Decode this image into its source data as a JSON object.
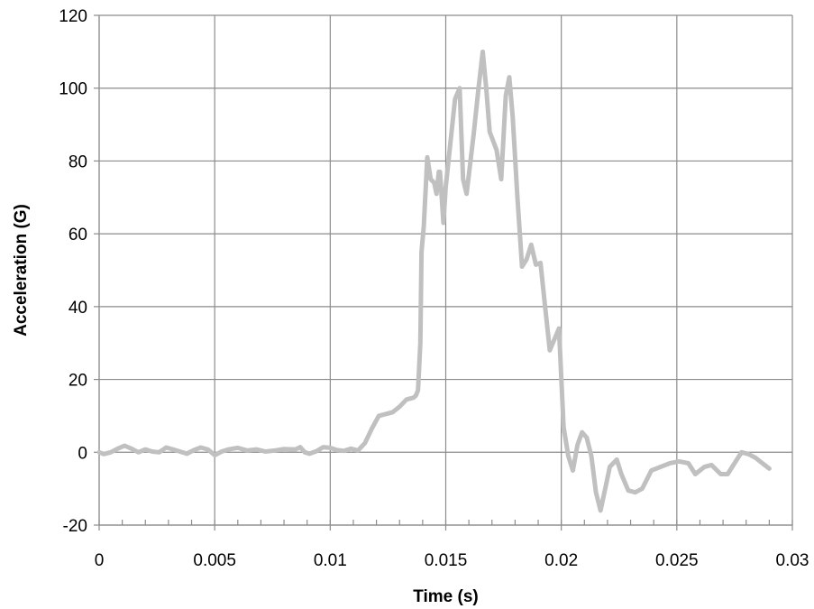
{
  "chart_data": {
    "type": "line",
    "title": "",
    "xlabel": "Time (s)",
    "ylabel": "Acceleration (G)",
    "xlim": [
      0,
      0.03
    ],
    "ylim": [
      -20,
      120
    ],
    "x_ticks": [
      0,
      0.005,
      0.01,
      0.015,
      0.02,
      0.025,
      0.03
    ],
    "x_tick_labels": [
      "0",
      "0.005",
      "0.01",
      "0.015",
      "0.02",
      "0.025",
      "0.03"
    ],
    "y_ticks": [
      -20,
      0,
      20,
      40,
      60,
      80,
      100,
      120
    ],
    "y_tick_labels": [
      "-20",
      "0",
      "20",
      "40",
      "60",
      "80",
      "100",
      "120"
    ],
    "x_minor_step": 0.001,
    "grid": true,
    "legend": "none",
    "series": [
      {
        "color": "#c0c0c0",
        "points": [
          [
            0.0,
            0
          ],
          [
            0.0002,
            -0.5
          ],
          [
            0.0005,
            0
          ],
          [
            0.0008,
            1
          ],
          [
            0.0011,
            1.8
          ],
          [
            0.0014,
            1
          ],
          [
            0.0017,
            0
          ],
          [
            0.002,
            0.8
          ],
          [
            0.0023,
            0.2
          ],
          [
            0.0026,
            0
          ],
          [
            0.0029,
            1.3
          ],
          [
            0.0032,
            0.8
          ],
          [
            0.0035,
            0.2
          ],
          [
            0.0038,
            -0.4
          ],
          [
            0.0041,
            0.6
          ],
          [
            0.0044,
            1.3
          ],
          [
            0.0047,
            0.8
          ],
          [
            0.005,
            -0.8
          ],
          [
            0.0053,
            0.2
          ],
          [
            0.0056,
            0.8
          ],
          [
            0.006,
            1.2
          ],
          [
            0.0064,
            0.5
          ],
          [
            0.0068,
            0.8
          ],
          [
            0.0072,
            0.2
          ],
          [
            0.0076,
            0.5
          ],
          [
            0.008,
            0.9
          ],
          [
            0.0085,
            0.8
          ],
          [
            0.0087,
            1.4
          ],
          [
            0.0089,
            0.0
          ],
          [
            0.0091,
            -0.4
          ],
          [
            0.0094,
            0.3
          ],
          [
            0.0097,
            1.4
          ],
          [
            0.01,
            1.2
          ],
          [
            0.0103,
            0.6
          ],
          [
            0.0106,
            0.4
          ],
          [
            0.0109,
            1.0
          ],
          [
            0.0112,
            0.5
          ],
          [
            0.0115,
            2.5
          ],
          [
            0.0118,
            6.5
          ],
          [
            0.0121,
            10
          ],
          [
            0.0124,
            10.5
          ],
          [
            0.0127,
            11
          ],
          [
            0.013,
            12.5
          ],
          [
            0.0133,
            14.5
          ],
          [
            0.0136,
            15
          ],
          [
            0.0137,
            15.5
          ],
          [
            0.0138,
            17
          ],
          [
            0.0139,
            30
          ],
          [
            0.01395,
            55
          ],
          [
            0.01405,
            62
          ],
          [
            0.0142,
            81
          ],
          [
            0.01435,
            75
          ],
          [
            0.0145,
            74
          ],
          [
            0.0146,
            71
          ],
          [
            0.0147,
            77
          ],
          [
            0.01475,
            77
          ],
          [
            0.0149,
            63
          ],
          [
            0.015,
            73
          ],
          [
            0.0154,
            97
          ],
          [
            0.0156,
            100
          ],
          [
            0.01575,
            75
          ],
          [
            0.0159,
            71
          ],
          [
            0.0162,
            87
          ],
          [
            0.0164,
            99
          ],
          [
            0.0166,
            110
          ],
          [
            0.01675,
            100
          ],
          [
            0.0169,
            88
          ],
          [
            0.0172,
            83
          ],
          [
            0.0174,
            75
          ],
          [
            0.0176,
            98
          ],
          [
            0.01775,
            103
          ],
          [
            0.0179,
            92
          ],
          [
            0.0181,
            70
          ],
          [
            0.0183,
            51
          ],
          [
            0.0185,
            53
          ],
          [
            0.0187,
            57
          ],
          [
            0.0189,
            51.5
          ],
          [
            0.0191,
            52
          ],
          [
            0.0193,
            40
          ],
          [
            0.0195,
            28
          ],
          [
            0.0197,
            31
          ],
          [
            0.0199,
            34
          ],
          [
            0.0201,
            7
          ],
          [
            0.0203,
            -1
          ],
          [
            0.0205,
            -5
          ],
          [
            0.0207,
            2
          ],
          [
            0.0209,
            5.5
          ],
          [
            0.0211,
            4
          ],
          [
            0.0213,
            -1
          ],
          [
            0.0215,
            -11
          ],
          [
            0.0217,
            -16
          ],
          [
            0.0219,
            -10
          ],
          [
            0.0221,
            -4
          ],
          [
            0.0224,
            -2
          ],
          [
            0.0226,
            -6
          ],
          [
            0.0229,
            -10.5
          ],
          [
            0.0232,
            -11
          ],
          [
            0.0235,
            -10
          ],
          [
            0.0239,
            -5
          ],
          [
            0.0243,
            -4
          ],
          [
            0.0247,
            -3
          ],
          [
            0.0251,
            -2.5
          ],
          [
            0.0255,
            -3
          ],
          [
            0.0258,
            -6
          ],
          [
            0.0262,
            -4
          ],
          [
            0.0265,
            -3.5
          ],
          [
            0.0269,
            -6
          ],
          [
            0.0272,
            -6
          ],
          [
            0.0275,
            -3
          ],
          [
            0.0278,
            0
          ],
          [
            0.0281,
            -0.5
          ],
          [
            0.0284,
            -1.5
          ],
          [
            0.0287,
            -3
          ],
          [
            0.029,
            -4.5
          ]
        ]
      }
    ]
  }
}
